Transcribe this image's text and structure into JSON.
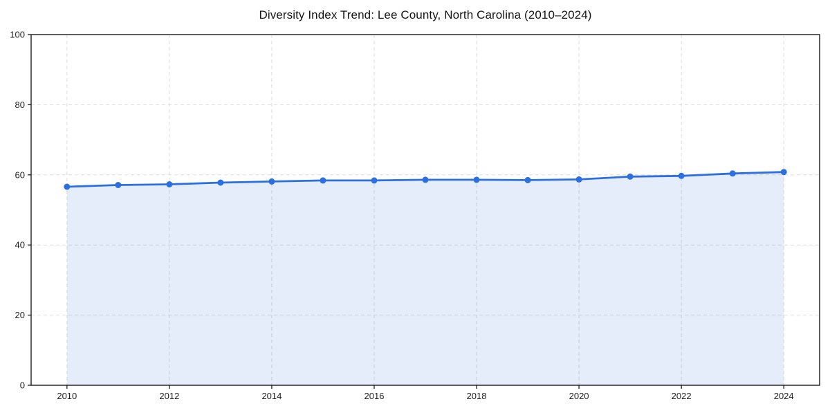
{
  "chart_data": {
    "type": "area",
    "title": "Diversity Index Trend: Lee County, North Carolina (2010–2024)",
    "xlabel": "",
    "ylabel": "",
    "x": [
      2010,
      2011,
      2012,
      2013,
      2014,
      2015,
      2016,
      2017,
      2018,
      2019,
      2020,
      2021,
      2022,
      2023,
      2024
    ],
    "values": [
      56.6,
      57.1,
      57.3,
      57.8,
      58.1,
      58.4,
      58.4,
      58.6,
      58.6,
      58.5,
      58.7,
      59.5,
      59.7,
      60.4,
      60.8
    ],
    "xlim": [
      2009.3,
      2024.7
    ],
    "ylim": [
      0,
      100
    ],
    "xticks": [
      2010,
      2012,
      2014,
      2016,
      2018,
      2020,
      2022,
      2024
    ],
    "yticks": [
      0,
      20,
      40,
      60,
      80,
      100
    ],
    "grid": true,
    "grid_style": "dashed",
    "legend_position": "none",
    "colors": {
      "line": "#2b6fe0",
      "marker": "#2b6fe0",
      "fill": "#2b6fe0",
      "fill_opacity": 0.12,
      "grid": "#d9d9d9",
      "spine": "#1a1a1a",
      "tick_label": "#1f1f1f",
      "title": "#151515",
      "background": "#ffffff"
    },
    "marker_radius": 4.5,
    "line_width": 2.8
  }
}
